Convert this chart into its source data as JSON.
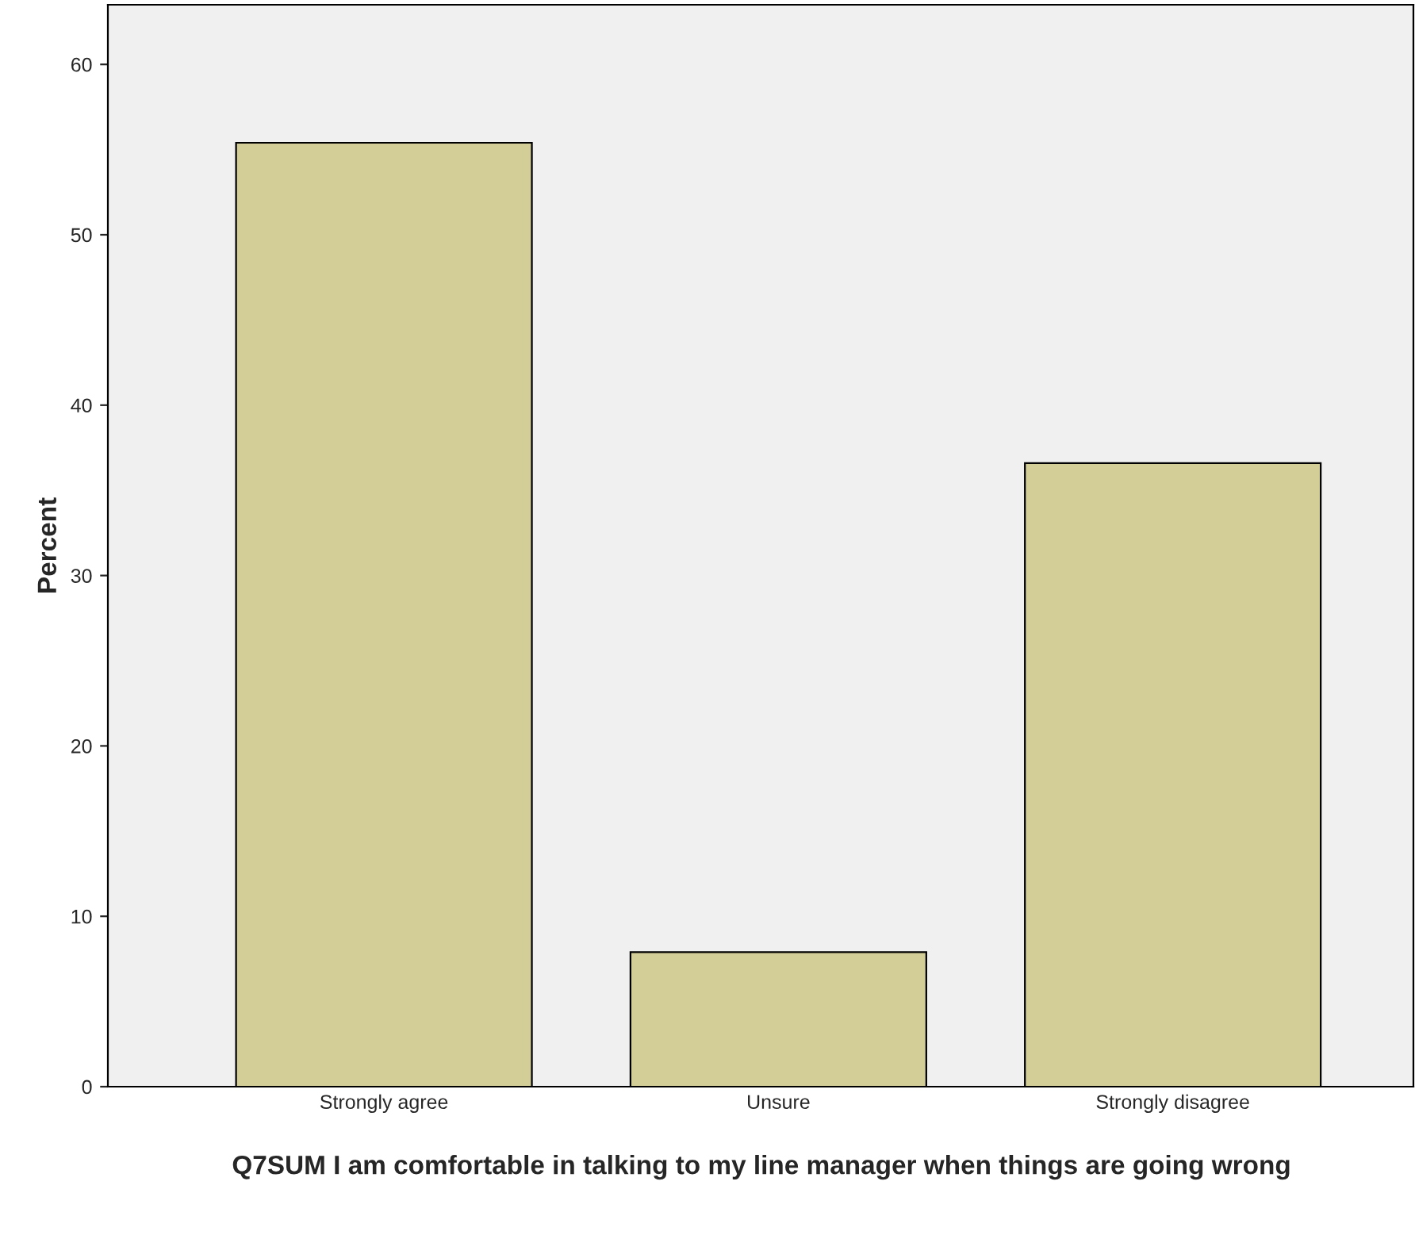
{
  "chart_data": {
    "type": "bar",
    "categories": [
      "Strongly agree",
      "Unsure",
      "Strongly disagree"
    ],
    "values": [
      55.4,
      7.9,
      36.6
    ],
    "color": "#d3ce97",
    "xlabel": "Q7SUM I am comfortable in talking to my line manager when things are going wrong",
    "ylabel": "Percent",
    "ylim": [
      0,
      63.5
    ],
    "yticks": [
      0,
      10,
      20,
      30,
      40,
      50,
      60
    ],
    "grid": false
  }
}
